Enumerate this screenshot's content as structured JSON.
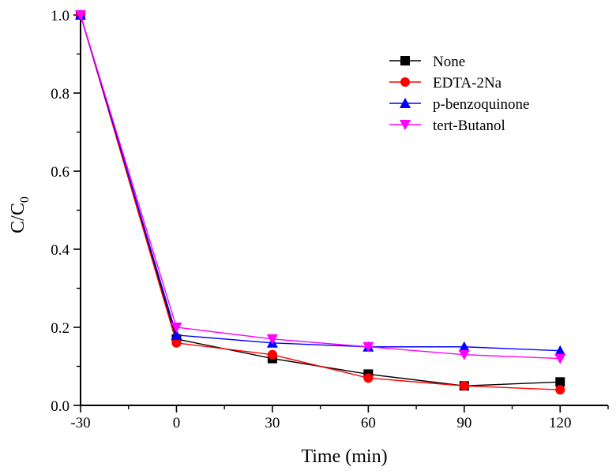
{
  "chart_data": {
    "type": "line",
    "xlabel": "Time (min)",
    "ylabel": "C/C",
    "ylabel_sub": "0",
    "xlim": [
      -30,
      135
    ],
    "ylim": [
      0,
      1.0
    ],
    "x_ticks": [
      -30,
      0,
      30,
      60,
      90,
      120
    ],
    "x_tick_labels": [
      "-30",
      "0",
      "30",
      "60",
      "90",
      "120"
    ],
    "y_ticks": [
      0,
      0.2,
      0.4,
      0.6,
      0.8,
      1.0
    ],
    "y_tick_labels": [
      "0.0",
      "0.2",
      "0.4",
      "0.6",
      "0.8",
      "1.0"
    ],
    "grid": false,
    "legend_position": "top-right",
    "x": [
      -30,
      0,
      30,
      60,
      90,
      120
    ],
    "series": [
      {
        "name": "None",
        "color": "#000000",
        "marker": "square",
        "values": [
          1.0,
          0.17,
          0.12,
          0.08,
          0.05,
          0.06
        ]
      },
      {
        "name": "EDTA-2Na",
        "color": "#ff0000",
        "marker": "circle",
        "values": [
          1.0,
          0.16,
          0.13,
          0.07,
          0.05,
          0.04
        ]
      },
      {
        "name": "p-benzoquinone",
        "color": "#0000ff",
        "marker": "triangle-up",
        "values": [
          1.0,
          0.18,
          0.16,
          0.15,
          0.15,
          0.14
        ]
      },
      {
        "name": "tert-Butanol",
        "color": "#ff00ff",
        "marker": "triangle-down",
        "values": [
          1.0,
          0.2,
          0.17,
          0.15,
          0.13,
          0.12
        ]
      }
    ]
  }
}
